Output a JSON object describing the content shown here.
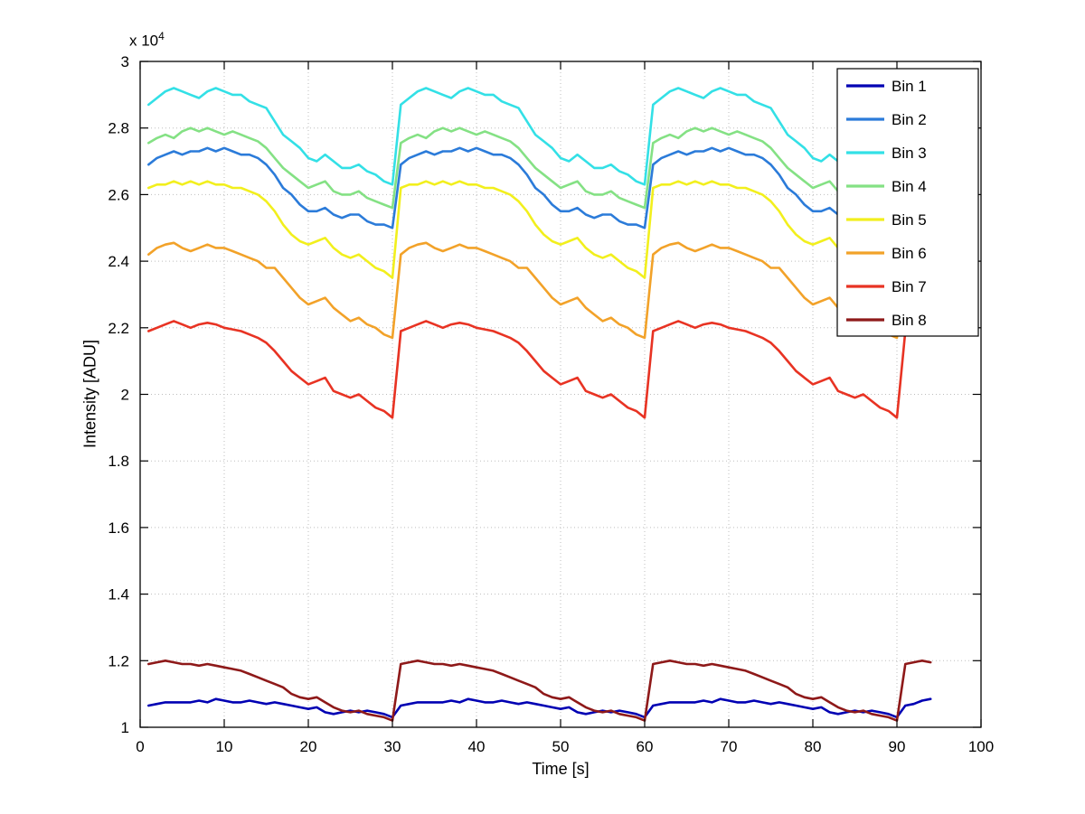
{
  "axes": {
    "exponent_base": "x 10",
    "exponent_power": "4"
  },
  "chart_data": {
    "type": "line",
    "title": "",
    "xlabel": "Time [s]",
    "ylabel": "Intensity [ADU]",
    "y_value_scale_note": "y values are in units of 1e4 ADU (axis shows x 10^4)",
    "xlim": [
      0,
      100
    ],
    "ylim": [
      1,
      3
    ],
    "grid": true,
    "legend_position": "upper right",
    "xticks": [
      0,
      10,
      20,
      30,
      40,
      50,
      60,
      70,
      80,
      90,
      100
    ],
    "xtick_labels": [
      "0",
      "10",
      "20",
      "30",
      "40",
      "50",
      "60",
      "70",
      "80",
      "90",
      "100"
    ],
    "yticks": [
      1,
      1.2,
      1.4,
      1.6,
      1.8,
      2,
      2.2,
      2.4,
      2.6,
      2.8,
      3
    ],
    "ytick_labels": [
      "1",
      "1.2",
      "1.4",
      "1.6",
      "1.8",
      "2",
      "2.2",
      "2.4",
      "2.6",
      "2.8",
      "3"
    ],
    "x": [
      1,
      2,
      3,
      4,
      5,
      6,
      7,
      8,
      9,
      10,
      11,
      12,
      13,
      14,
      15,
      16,
      17,
      18,
      19,
      20,
      21,
      22,
      23,
      24,
      25,
      26,
      27,
      28,
      29,
      30,
      31,
      32,
      33,
      34,
      35,
      36,
      37,
      38,
      39,
      40,
      41,
      42,
      43,
      44,
      45,
      46,
      47,
      48,
      49,
      50,
      51,
      52,
      53,
      54,
      55,
      56,
      57,
      58,
      59,
      60,
      61,
      62,
      63,
      64,
      65,
      66,
      67,
      68,
      69,
      70,
      71,
      72,
      73,
      74,
      75,
      76,
      77,
      78,
      79,
      80,
      81,
      82,
      83,
      84,
      85,
      86,
      87,
      88,
      89,
      90,
      91,
      92,
      93,
      94
    ],
    "series": [
      {
        "name": "Bin 1",
        "color": "#0000b3",
        "values": [
          1.065,
          1.07,
          1.075,
          1.075,
          1.075,
          1.075,
          1.08,
          1.075,
          1.085,
          1.08,
          1.075,
          1.075,
          1.08,
          1.075,
          1.07,
          1.075,
          1.07,
          1.065,
          1.06,
          1.055,
          1.06,
          1.045,
          1.04,
          1.045,
          1.05,
          1.045,
          1.05,
          1.045,
          1.04,
          1.03,
          1.065,
          1.07,
          1.075,
          1.075,
          1.075,
          1.075,
          1.08,
          1.075,
          1.085,
          1.08,
          1.075,
          1.075,
          1.08,
          1.075,
          1.07,
          1.075,
          1.07,
          1.065,
          1.06,
          1.055,
          1.06,
          1.045,
          1.04,
          1.045,
          1.05,
          1.045,
          1.05,
          1.045,
          1.04,
          1.03,
          1.065,
          1.07,
          1.075,
          1.075,
          1.075,
          1.075,
          1.08,
          1.075,
          1.085,
          1.08,
          1.075,
          1.075,
          1.08,
          1.075,
          1.07,
          1.075,
          1.07,
          1.065,
          1.06,
          1.055,
          1.06,
          1.045,
          1.04,
          1.045,
          1.05,
          1.045,
          1.05,
          1.045,
          1.04,
          1.03,
          1.065,
          1.07,
          1.08,
          1.085
        ]
      },
      {
        "name": "Bin 2",
        "color": "#2b7bd9",
        "values": [
          2.69,
          2.71,
          2.72,
          2.73,
          2.72,
          2.73,
          2.73,
          2.74,
          2.73,
          2.74,
          2.73,
          2.72,
          2.72,
          2.71,
          2.69,
          2.66,
          2.62,
          2.6,
          2.57,
          2.55,
          2.55,
          2.56,
          2.54,
          2.53,
          2.54,
          2.54,
          2.52,
          2.51,
          2.51,
          2.5,
          2.69,
          2.71,
          2.72,
          2.73,
          2.72,
          2.73,
          2.73,
          2.74,
          2.73,
          2.74,
          2.73,
          2.72,
          2.72,
          2.71,
          2.69,
          2.66,
          2.62,
          2.6,
          2.57,
          2.55,
          2.55,
          2.56,
          2.54,
          2.53,
          2.54,
          2.54,
          2.52,
          2.51,
          2.51,
          2.5,
          2.69,
          2.71,
          2.72,
          2.73,
          2.72,
          2.73,
          2.73,
          2.74,
          2.73,
          2.74,
          2.73,
          2.72,
          2.72,
          2.71,
          2.69,
          2.66,
          2.62,
          2.6,
          2.57,
          2.55,
          2.55,
          2.56,
          2.54,
          2.53,
          2.54,
          2.54,
          2.52,
          2.51,
          2.51,
          2.5,
          2.69,
          2.71,
          2.72,
          2.73
        ]
      },
      {
        "name": "Bin 3",
        "color": "#33e0e6",
        "values": [
          2.87,
          2.89,
          2.91,
          2.92,
          2.91,
          2.9,
          2.89,
          2.91,
          2.92,
          2.91,
          2.9,
          2.9,
          2.88,
          2.87,
          2.86,
          2.82,
          2.78,
          2.76,
          2.74,
          2.71,
          2.7,
          2.72,
          2.7,
          2.68,
          2.68,
          2.69,
          2.67,
          2.66,
          2.64,
          2.63,
          2.87,
          2.89,
          2.91,
          2.92,
          2.91,
          2.9,
          2.89,
          2.91,
          2.92,
          2.91,
          2.9,
          2.9,
          2.88,
          2.87,
          2.86,
          2.82,
          2.78,
          2.76,
          2.74,
          2.71,
          2.7,
          2.72,
          2.7,
          2.68,
          2.68,
          2.69,
          2.67,
          2.66,
          2.64,
          2.63,
          2.87,
          2.89,
          2.91,
          2.92,
          2.91,
          2.9,
          2.89,
          2.91,
          2.92,
          2.91,
          2.9,
          2.9,
          2.88,
          2.87,
          2.86,
          2.82,
          2.78,
          2.76,
          2.74,
          2.71,
          2.7,
          2.72,
          2.7,
          2.68,
          2.68,
          2.69,
          2.67,
          2.66,
          2.64,
          2.63,
          2.87,
          2.89,
          2.91,
          2.92
        ]
      },
      {
        "name": "Bin 4",
        "color": "#84e184",
        "values": [
          2.755,
          2.77,
          2.78,
          2.77,
          2.79,
          2.8,
          2.79,
          2.8,
          2.79,
          2.78,
          2.79,
          2.78,
          2.77,
          2.76,
          2.74,
          2.71,
          2.68,
          2.66,
          2.64,
          2.62,
          2.63,
          2.64,
          2.61,
          2.6,
          2.6,
          2.61,
          2.59,
          2.58,
          2.57,
          2.56,
          2.755,
          2.77,
          2.78,
          2.77,
          2.79,
          2.8,
          2.79,
          2.8,
          2.79,
          2.78,
          2.79,
          2.78,
          2.77,
          2.76,
          2.74,
          2.71,
          2.68,
          2.66,
          2.64,
          2.62,
          2.63,
          2.64,
          2.61,
          2.6,
          2.6,
          2.61,
          2.59,
          2.58,
          2.57,
          2.56,
          2.755,
          2.77,
          2.78,
          2.77,
          2.79,
          2.8,
          2.79,
          2.8,
          2.79,
          2.78,
          2.79,
          2.78,
          2.77,
          2.76,
          2.74,
          2.71,
          2.68,
          2.66,
          2.64,
          2.62,
          2.63,
          2.64,
          2.61,
          2.6,
          2.6,
          2.61,
          2.59,
          2.58,
          2.57,
          2.56,
          2.755,
          2.77,
          2.78,
          2.77
        ]
      },
      {
        "name": "Bin 5",
        "color": "#f2ef1d",
        "values": [
          2.62,
          2.63,
          2.63,
          2.64,
          2.63,
          2.64,
          2.63,
          2.64,
          2.63,
          2.63,
          2.62,
          2.62,
          2.61,
          2.6,
          2.58,
          2.55,
          2.51,
          2.48,
          2.46,
          2.45,
          2.46,
          2.47,
          2.44,
          2.42,
          2.41,
          2.42,
          2.4,
          2.38,
          2.37,
          2.35,
          2.62,
          2.63,
          2.63,
          2.64,
          2.63,
          2.64,
          2.63,
          2.64,
          2.63,
          2.63,
          2.62,
          2.62,
          2.61,
          2.6,
          2.58,
          2.55,
          2.51,
          2.48,
          2.46,
          2.45,
          2.46,
          2.47,
          2.44,
          2.42,
          2.41,
          2.42,
          2.4,
          2.38,
          2.37,
          2.35,
          2.62,
          2.63,
          2.63,
          2.64,
          2.63,
          2.64,
          2.63,
          2.64,
          2.63,
          2.63,
          2.62,
          2.62,
          2.61,
          2.6,
          2.58,
          2.55,
          2.51,
          2.48,
          2.46,
          2.45,
          2.46,
          2.47,
          2.44,
          2.42,
          2.41,
          2.42,
          2.4,
          2.38,
          2.37,
          2.35,
          2.62,
          2.63,
          2.63,
          2.64
        ]
      },
      {
        "name": "Bin 6",
        "color": "#f2a229",
        "values": [
          2.42,
          2.44,
          2.45,
          2.455,
          2.44,
          2.43,
          2.44,
          2.45,
          2.44,
          2.44,
          2.43,
          2.42,
          2.41,
          2.4,
          2.38,
          2.38,
          2.35,
          2.32,
          2.29,
          2.27,
          2.28,
          2.29,
          2.26,
          2.24,
          2.22,
          2.23,
          2.21,
          2.2,
          2.18,
          2.17,
          2.42,
          2.44,
          2.45,
          2.455,
          2.44,
          2.43,
          2.44,
          2.45,
          2.44,
          2.44,
          2.43,
          2.42,
          2.41,
          2.4,
          2.38,
          2.38,
          2.35,
          2.32,
          2.29,
          2.27,
          2.28,
          2.29,
          2.26,
          2.24,
          2.22,
          2.23,
          2.21,
          2.2,
          2.18,
          2.17,
          2.42,
          2.44,
          2.45,
          2.455,
          2.44,
          2.43,
          2.44,
          2.45,
          2.44,
          2.44,
          2.43,
          2.42,
          2.41,
          2.4,
          2.38,
          2.38,
          2.35,
          2.32,
          2.29,
          2.27,
          2.28,
          2.29,
          2.26,
          2.24,
          2.22,
          2.23,
          2.21,
          2.2,
          2.18,
          2.17,
          2.42,
          2.44,
          2.45,
          2.455
        ]
      },
      {
        "name": "Bin 7",
        "color": "#e83323",
        "values": [
          2.19,
          2.2,
          2.21,
          2.22,
          2.21,
          2.2,
          2.21,
          2.215,
          2.21,
          2.2,
          2.195,
          2.19,
          2.18,
          2.17,
          2.155,
          2.13,
          2.1,
          2.07,
          2.05,
          2.03,
          2.04,
          2.05,
          2.01,
          2.0,
          1.99,
          2.0,
          1.98,
          1.96,
          1.95,
          1.93,
          2.19,
          2.2,
          2.21,
          2.22,
          2.21,
          2.2,
          2.21,
          2.215,
          2.21,
          2.2,
          2.195,
          2.19,
          2.18,
          2.17,
          2.155,
          2.13,
          2.1,
          2.07,
          2.05,
          2.03,
          2.04,
          2.05,
          2.01,
          2.0,
          1.99,
          2.0,
          1.98,
          1.96,
          1.95,
          1.93,
          2.19,
          2.2,
          2.21,
          2.22,
          2.21,
          2.2,
          2.21,
          2.215,
          2.21,
          2.2,
          2.195,
          2.19,
          2.18,
          2.17,
          2.155,
          2.13,
          2.1,
          2.07,
          2.05,
          2.03,
          2.04,
          2.05,
          2.01,
          2.0,
          1.99,
          2.0,
          1.98,
          1.96,
          1.95,
          1.93,
          2.19,
          2.2,
          2.21,
          2.22
        ]
      },
      {
        "name": "Bin 8",
        "color": "#8e1919",
        "values": [
          1.19,
          1.195,
          1.2,
          1.195,
          1.19,
          1.19,
          1.185,
          1.19,
          1.185,
          1.18,
          1.175,
          1.17,
          1.16,
          1.15,
          1.14,
          1.13,
          1.12,
          1.1,
          1.09,
          1.085,
          1.09,
          1.075,
          1.06,
          1.05,
          1.045,
          1.05,
          1.04,
          1.035,
          1.03,
          1.02,
          1.19,
          1.195,
          1.2,
          1.195,
          1.19,
          1.19,
          1.185,
          1.19,
          1.185,
          1.18,
          1.175,
          1.17,
          1.16,
          1.15,
          1.14,
          1.13,
          1.12,
          1.1,
          1.09,
          1.085,
          1.09,
          1.075,
          1.06,
          1.05,
          1.045,
          1.05,
          1.04,
          1.035,
          1.03,
          1.02,
          1.19,
          1.195,
          1.2,
          1.195,
          1.19,
          1.19,
          1.185,
          1.19,
          1.185,
          1.18,
          1.175,
          1.17,
          1.16,
          1.15,
          1.14,
          1.13,
          1.12,
          1.1,
          1.09,
          1.085,
          1.09,
          1.075,
          1.06,
          1.05,
          1.045,
          1.05,
          1.04,
          1.035,
          1.03,
          1.02,
          1.19,
          1.195,
          1.2,
          1.195
        ]
      }
    ]
  }
}
